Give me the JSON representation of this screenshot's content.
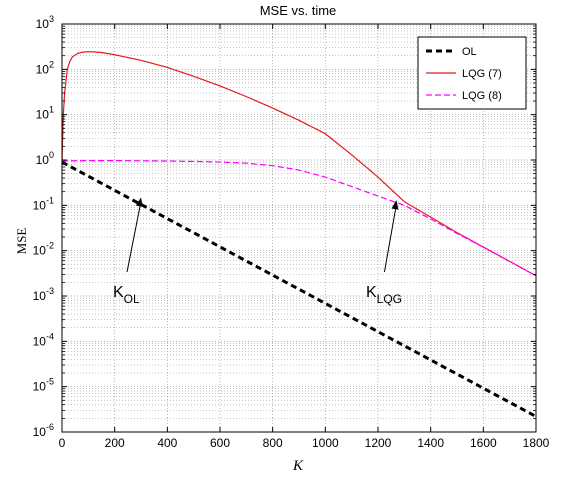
{
  "chart_data": {
    "type": "line",
    "title": "MSE vs. time",
    "xlabel": "K",
    "ylabel": "MSE",
    "xlim": [
      0,
      1800
    ],
    "ylim": [
      1e-06,
      1000
    ],
    "yscale": "log",
    "grid": true,
    "x_ticks": [
      0,
      200,
      400,
      600,
      800,
      1000,
      1200,
      1400,
      1600,
      1800
    ],
    "y_ticks": [
      {
        "exp": -6,
        "value": 1e-06
      },
      {
        "exp": -5,
        "value": 1e-05
      },
      {
        "exp": -4,
        "value": 0.0001
      },
      {
        "exp": -3,
        "value": 0.001
      },
      {
        "exp": -2,
        "value": 0.01
      },
      {
        "exp": -1,
        "value": 0.1
      },
      {
        "exp": 0,
        "value": 1
      },
      {
        "exp": 1,
        "value": 10
      },
      {
        "exp": 2,
        "value": 100
      },
      {
        "exp": 3,
        "value": 1000
      }
    ],
    "legend_position": "top-right",
    "series": [
      {
        "name": "OL",
        "color": "#000000",
        "style": "dashed-thick",
        "x": [
          0,
          1800
        ],
        "y": [
          0.9,
          2.2e-06
        ]
      },
      {
        "name": "LQG (7)",
        "color": "#e31a1c",
        "style": "solid",
        "x": [
          0,
          5,
          10,
          20,
          30,
          40,
          60,
          80,
          100,
          120,
          150,
          200,
          300,
          400,
          500,
          600,
          700,
          800,
          900,
          1000,
          1100,
          1200,
          1300,
          1400,
          1500,
          1600,
          1700,
          1800
        ],
        "y": [
          1,
          10,
          30,
          100,
          150,
          190,
          225,
          240,
          245,
          243,
          235,
          210,
          158,
          110,
          70,
          43,
          25,
          14,
          7.5,
          3.8,
          1.3,
          0.42,
          0.12,
          0.055,
          0.025,
          0.012,
          0.0058,
          0.0028
        ]
      },
      {
        "name": "LQG (8)",
        "color": "#ff00ff",
        "style": "dashed",
        "x": [
          0,
          100,
          200,
          300,
          400,
          500,
          600,
          700,
          800,
          900,
          1000,
          1100,
          1200,
          1300,
          1400,
          1500,
          1600,
          1700,
          1800
        ],
        "y": [
          0.95,
          0.97,
          0.97,
          0.96,
          0.95,
          0.93,
          0.9,
          0.85,
          0.75,
          0.6,
          0.42,
          0.26,
          0.16,
          0.1,
          0.05,
          0.024,
          0.012,
          0.0058,
          0.0028
        ]
      }
    ],
    "annotations": [
      {
        "text": "K",
        "sub": "OL",
        "x": 300,
        "y": 0.15
      },
      {
        "text": "K",
        "sub": "LQG",
        "x": 1270,
        "y": 0.13
      }
    ]
  }
}
